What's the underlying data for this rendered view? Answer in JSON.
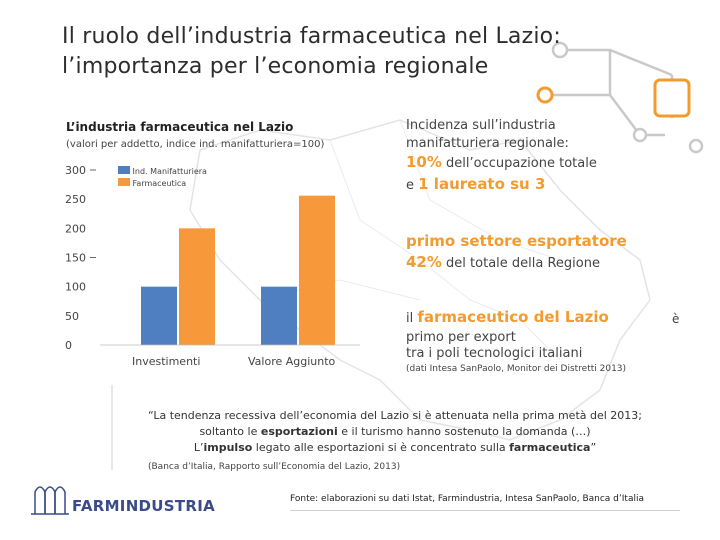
{
  "slide": {
    "title_line1": "Il ruolo dell’industria farmaceutica nel Lazio:",
    "title_line2": "l’importanza  per l’economia regionale"
  },
  "colors": {
    "blue": "#4f7fc0",
    "orange": "#f7983a",
    "accent_orange": "#f39b2e",
    "deco_gray": "#c9c9c9",
    "brand_blue": "#3a4a8a"
  },
  "chart_data": {
    "type": "bar",
    "title": "L’industria farmaceutica nel Lazio",
    "subtitle": "(valori per addetto, indice ind. manifatturiera=100)",
    "categories": [
      "Investimenti",
      "Valore Aggiunto"
    ],
    "series": [
      {
        "name": "Ind. Manifatturiera",
        "values": [
          100,
          100
        ]
      },
      {
        "name": "Farmaceutica",
        "values": [
          200,
          256
        ]
      }
    ],
    "ylim": [
      0,
      300
    ],
    "yticks": [
      "300",
      "250",
      "200",
      "150",
      "100",
      "50",
      "0"
    ],
    "xlabel": "",
    "ylabel": ""
  },
  "panel": {
    "intro_line1": "Incidenza sull’industria",
    "intro_line2": "manifatturiera regionale:",
    "stat1_value": "10%",
    "stat1_text": "dell’occupazione totale",
    "stat2_prefix": "e",
    "stat2_value": "1 laureato su 3",
    "export_headline": "primo settore esportatore",
    "export_value": "42%",
    "export_text": "del totale della Regione",
    "pole_prefix": "il",
    "pole_headline": "farmaceutico del Lazio",
    "pole_line2": "primo per export",
    "pole_line3": "tra i poli tecnologici italiani",
    "pole_source": "(dati Intesa SanPaolo, Monitor dei Distretti 2013)",
    "stray_char": "è"
  },
  "quote": {
    "line1": "“La tendenza recessiva dell’economia del Lazio si è attenuata nella prima metà del 2013;",
    "line2_a": "soltanto le ",
    "line2_em": "esportazioni",
    "line2_b": " e il turismo hanno sostenuto la domanda (…)",
    "line3_a": "L’",
    "line3_em1": "impulso",
    "line3_b": " legato alle esportazioni si è concentrato sulla ",
    "line3_em2": "farmaceutica",
    "line3_c": "”",
    "source": "(Banca d’Italia, Rapporto sull’Economia del Lazio, 2013)"
  },
  "footer": {
    "brand": "FARMINDUSTRIA",
    "note": "Fonte: elaborazioni su dati Istat, Farmindustria, Intesa SanPaolo, Banca d’Italia"
  }
}
